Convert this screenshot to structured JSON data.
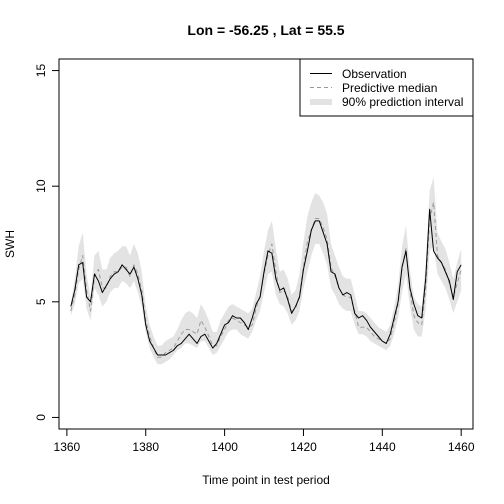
{
  "chart_data": {
    "type": "line",
    "title": "Lon =  -56.25 , Lat =  55.5",
    "xlabel": "Time point in test period",
    "ylabel": "SWH",
    "xlim": [
      1358,
      1463
    ],
    "ylim": [
      -0.5,
      15.5
    ],
    "xticks": [
      1360,
      1380,
      1400,
      1420,
      1440,
      1460
    ],
    "yticks": [
      0,
      5,
      10,
      15
    ],
    "grid": false,
    "legend_position": "top-right",
    "x": [
      1361,
      1362,
      1363,
      1364,
      1365,
      1366,
      1367,
      1368,
      1369,
      1370,
      1371,
      1372,
      1373,
      1374,
      1375,
      1376,
      1377,
      1378,
      1379,
      1380,
      1381,
      1382,
      1383,
      1384,
      1385,
      1386,
      1387,
      1388,
      1389,
      1390,
      1391,
      1392,
      1393,
      1394,
      1395,
      1396,
      1397,
      1398,
      1399,
      1400,
      1401,
      1402,
      1403,
      1404,
      1405,
      1406,
      1407,
      1408,
      1409,
      1410,
      1411,
      1412,
      1413,
      1414,
      1415,
      1416,
      1417,
      1418,
      1419,
      1420,
      1421,
      1422,
      1423,
      1424,
      1425,
      1426,
      1427,
      1428,
      1429,
      1430,
      1431,
      1432,
      1433,
      1434,
      1435,
      1436,
      1437,
      1438,
      1439,
      1440,
      1441,
      1442,
      1443,
      1444,
      1445,
      1446,
      1447,
      1448,
      1449,
      1450,
      1451,
      1452,
      1453,
      1454,
      1455,
      1456,
      1457,
      1458,
      1459,
      1460
    ],
    "series": [
      {
        "name": "Observation",
        "style": "solid",
        "color": "#000000",
        "values": [
          4.8,
          5.5,
          6.6,
          6.7,
          5.2,
          5.0,
          6.2,
          5.9,
          5.4,
          5.7,
          6.0,
          6.2,
          6.3,
          6.6,
          6.4,
          6.2,
          6.5,
          6.0,
          5.3,
          4.0,
          3.3,
          3.0,
          2.7,
          2.7,
          2.7,
          2.8,
          2.9,
          3.1,
          3.2,
          3.4,
          3.6,
          3.4,
          3.2,
          3.5,
          3.6,
          3.3,
          3.0,
          3.2,
          3.6,
          4.0,
          4.1,
          4.4,
          4.3,
          4.3,
          4.1,
          3.8,
          4.3,
          4.9,
          5.2,
          6.3,
          7.2,
          7.1,
          6.0,
          5.5,
          5.6,
          5.1,
          4.5,
          4.8,
          5.2,
          6.4,
          7.2,
          8.1,
          8.5,
          8.5,
          8.0,
          7.5,
          6.3,
          6.2,
          5.6,
          5.3,
          5.4,
          5.3,
          4.5,
          4.3,
          4.4,
          4.2,
          3.9,
          3.7,
          3.5,
          3.3,
          3.2,
          3.6,
          4.3,
          5.0,
          6.5,
          7.2,
          5.6,
          4.9,
          4.4,
          4.3,
          6.0,
          9.0,
          7.2,
          6.9,
          6.7,
          6.3,
          5.9,
          5.1,
          6.3,
          6.6
        ]
      },
      {
        "name": "Predictive median",
        "style": "dashed",
        "color": "#999999",
        "values": [
          4.6,
          5.3,
          6.4,
          7.0,
          5.5,
          4.6,
          6.1,
          6.4,
          5.6,
          5.6,
          6.1,
          6.3,
          6.3,
          6.5,
          6.5,
          6.1,
          6.6,
          6.2,
          5.5,
          4.2,
          3.5,
          3.0,
          2.6,
          2.6,
          2.8,
          2.9,
          3.0,
          3.3,
          3.6,
          3.8,
          3.8,
          3.7,
          3.6,
          4.2,
          3.9,
          3.5,
          3.1,
          3.1,
          3.5,
          3.8,
          4.2,
          4.3,
          4.2,
          4.1,
          4.0,
          3.9,
          4.0,
          4.7,
          5.3,
          6.2,
          7.0,
          7.5,
          6.3,
          5.4,
          5.5,
          5.2,
          4.6,
          4.7,
          5.3,
          6.5,
          7.6,
          8.1,
          8.6,
          8.6,
          8.2,
          7.7,
          6.5,
          6.1,
          5.6,
          5.3,
          5.2,
          5.2,
          4.6,
          3.9,
          3.9,
          3.9,
          3.7,
          3.5,
          3.4,
          3.3,
          3.2,
          3.4,
          4.1,
          4.9,
          6.5,
          7.3,
          5.5,
          4.4,
          4.1,
          4.0,
          5.6,
          8.6,
          9.3,
          7.0,
          6.7,
          6.4,
          5.8,
          5.2,
          5.8,
          6.4
        ]
      },
      {
        "name": "90% prediction interval",
        "style": "band",
        "color": "#e3e3e3",
        "lower": [
          4.4,
          4.9,
          5.8,
          6.0,
          4.7,
          4.2,
          5.6,
          5.3,
          4.8,
          5.0,
          5.4,
          5.6,
          5.6,
          5.9,
          5.8,
          5.6,
          5.9,
          5.4,
          4.8,
          3.7,
          3.0,
          2.6,
          2.3,
          2.3,
          2.4,
          2.5,
          2.7,
          2.9,
          3.0,
          3.2,
          3.2,
          3.1,
          3.0,
          3.3,
          3.3,
          3.0,
          2.7,
          2.8,
          3.1,
          3.4,
          3.7,
          3.8,
          3.8,
          3.6,
          3.5,
          3.4,
          3.7,
          4.2,
          4.6,
          5.4,
          6.2,
          6.3,
          5.3,
          4.9,
          4.8,
          4.5,
          4.0,
          4.2,
          4.6,
          5.6,
          6.3,
          7.0,
          7.5,
          7.5,
          7.1,
          6.6,
          5.6,
          5.3,
          4.9,
          4.7,
          4.6,
          4.6,
          4.0,
          3.6,
          3.6,
          3.5,
          3.3,
          3.2,
          3.1,
          3.0,
          2.9,
          3.1,
          3.6,
          4.3,
          5.4,
          6.2,
          4.8,
          3.8,
          3.5,
          3.5,
          4.7,
          7.2,
          7.4,
          6.2,
          5.9,
          5.6,
          5.1,
          4.5,
          5.0,
          5.5
        ],
        "upper": [
          4.9,
          6.0,
          7.4,
          8.0,
          6.2,
          5.2,
          7.0,
          7.2,
          6.4,
          6.4,
          6.9,
          7.1,
          7.2,
          7.4,
          7.4,
          7.0,
          7.5,
          7.1,
          6.3,
          4.8,
          4.0,
          3.5,
          3.1,
          3.1,
          3.3,
          3.4,
          3.5,
          3.8,
          4.2,
          4.5,
          4.6,
          4.5,
          4.3,
          4.9,
          4.6,
          4.2,
          3.7,
          3.7,
          4.2,
          4.5,
          4.8,
          4.9,
          4.8,
          4.7,
          4.6,
          4.5,
          4.7,
          5.4,
          6.1,
          7.2,
          8.1,
          8.5,
          7.3,
          6.3,
          6.4,
          6.0,
          5.3,
          5.5,
          6.2,
          7.6,
          8.7,
          9.3,
          9.7,
          9.6,
          9.3,
          8.8,
          7.5,
          7.0,
          6.5,
          6.1,
          6.0,
          6.0,
          5.3,
          4.6,
          4.6,
          4.5,
          4.3,
          4.1,
          3.9,
          3.8,
          3.7,
          4.0,
          4.8,
          5.7,
          7.4,
          8.3,
          6.4,
          5.2,
          4.9,
          4.8,
          6.6,
          9.8,
          10.4,
          8.0,
          7.6,
          7.3,
          6.7,
          6.0,
          6.7,
          7.3
        ]
      }
    ]
  }
}
